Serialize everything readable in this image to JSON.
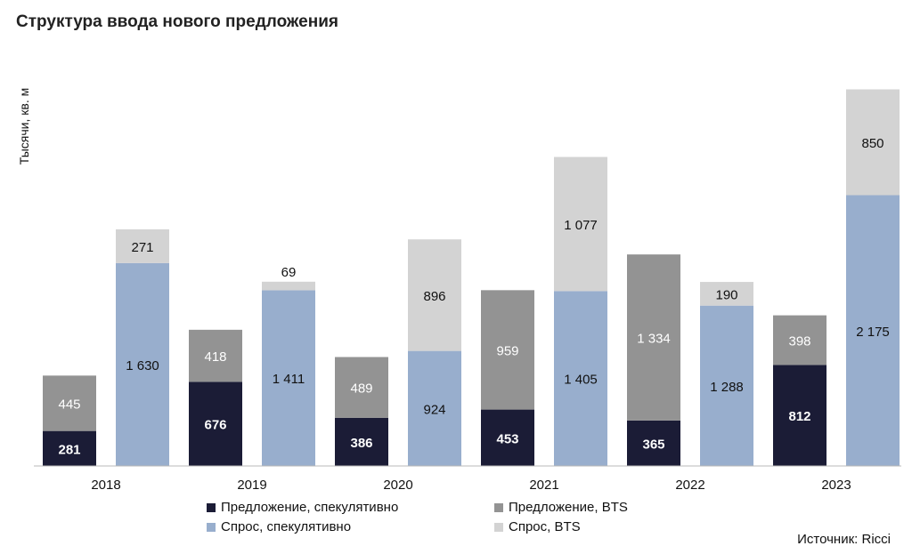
{
  "chart_data": {
    "type": "bar",
    "stacked": true,
    "title": "Структура ввода нового предложения",
    "ylabel": "Тысячи, кв. м",
    "xlabel": "",
    "categories": [
      "2018",
      "2019",
      "2020",
      "2021",
      "2022",
      "2023"
    ],
    "groups": [
      {
        "name": "Предложение",
        "series": [
          {
            "name": "Предложение, спекулятивно",
            "color": "#1b1c36",
            "values": [
              281,
              676,
              386,
              453,
              365,
              812
            ],
            "labels": [
              "281",
              "676",
              "386",
              "453",
              "365",
              "812"
            ]
          },
          {
            "name": "Предложение, BTS",
            "color": "#939393",
            "values": [
              445,
              418,
              489,
              959,
              1334,
              398
            ],
            "labels": [
              "445",
              "418",
              "489",
              "959",
              "1 334",
              "398"
            ]
          }
        ]
      },
      {
        "name": "Спрос",
        "series": [
          {
            "name": "Спрос, спекулятивно",
            "color": "#98aecd",
            "values": [
              1630,
              1411,
              924,
              1405,
              1288,
              2175
            ],
            "labels": [
              "1 630",
              "1 411",
              "924",
              "1 405",
              "1 288",
              "2 175"
            ]
          },
          {
            "name": "Спрос, BTS",
            "color": "#d3d3d3",
            "values": [
              271,
              69,
              896,
              1077,
              190,
              850
            ],
            "labels": [
              "271",
              "69",
              "896",
              "1 077",
              "190",
              "850"
            ]
          }
        ]
      }
    ],
    "ylim": [
      0,
      3100
    ],
    "grid": false,
    "legend_position": "bottom",
    "source": "Источник: Ricci"
  }
}
